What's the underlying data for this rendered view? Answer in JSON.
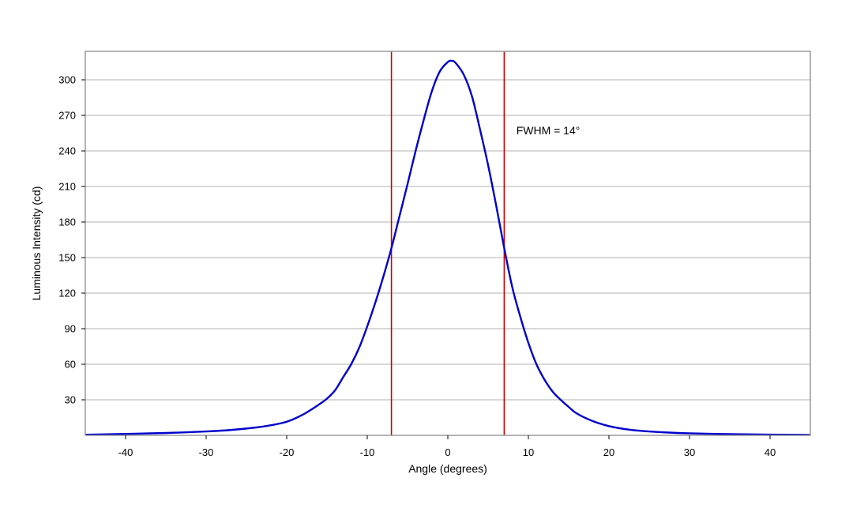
{
  "chart_data": {
    "type": "line",
    "title": "",
    "xlabel": "Angle (degrees)",
    "ylabel": "Luminous Intensity (cd)",
    "xlim": [
      -45,
      45
    ],
    "ylim": [
      0,
      324
    ],
    "x_ticks": [
      -40,
      -30,
      -20,
      -10,
      0,
      10,
      20,
      30,
      40
    ],
    "y_ticks": [
      30,
      60,
      90,
      120,
      150,
      180,
      210,
      240,
      270,
      300
    ],
    "grid": {
      "horizontal": true,
      "vertical": false
    },
    "series": [
      {
        "color": "#0000cc",
        "x": [
          -45,
          -40,
          -35,
          -30,
          -27,
          -24,
          -22,
          -20,
          -18,
          -16,
          -15,
          -14,
          -13,
          -12,
          -11,
          -10,
          -9,
          -8,
          -7,
          -6,
          -5,
          -4,
          -3,
          -2,
          -1,
          0,
          0.5,
          1,
          2,
          3,
          4,
          5,
          6,
          7,
          8,
          9,
          10,
          11,
          12,
          13,
          14,
          15,
          16,
          18,
          20,
          22,
          24,
          27,
          30,
          35,
          40,
          45
        ],
        "y": [
          0.5,
          1.2,
          2.0,
          3.3,
          4.5,
          6.5,
          8.5,
          11.5,
          17.5,
          26,
          31,
          38,
          49,
          60,
          74,
          92,
          112,
          134,
          158,
          185,
          212,
          240,
          266,
          290,
          307,
          315,
          316,
          314,
          304,
          286,
          258,
          228,
          194,
          158,
          125,
          100,
          78,
          60,
          47,
          37,
          30,
          24,
          18.5,
          12,
          7.8,
          5.3,
          3.8,
          2.5,
          1.7,
          1.0,
          0.6,
          0.4
        ]
      }
    ],
    "vertical_lines": [
      {
        "x": -7,
        "color": "#cc0000"
      },
      {
        "x": 7,
        "color": "#cc0000"
      }
    ],
    "annotations": [
      {
        "text": "FWHM = 14°",
        "x": 8.5,
        "y": 254
      }
    ],
    "colors": {
      "frame": "#999999",
      "grid": "#b0b0b0"
    }
  }
}
